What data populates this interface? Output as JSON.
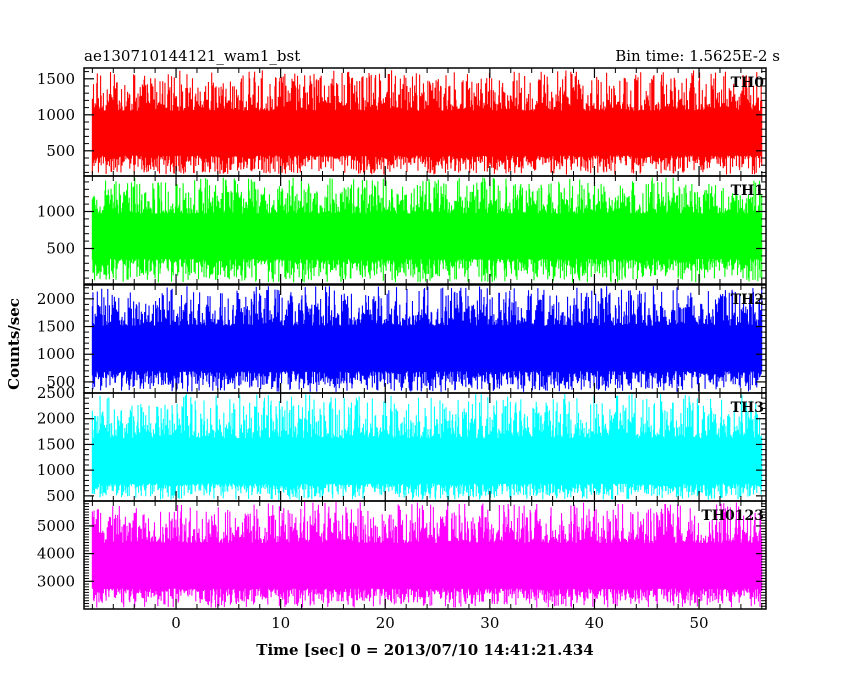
{
  "header": {
    "left": "ae130710144121_wam1_bst",
    "right": "Bin time: 1.5625E-2 s"
  },
  "chart_data": {
    "type": "line",
    "title": "ae130710144121_wam1_bst",
    "xlabel": "Time [sec] 0 = 2013/07/10 14:41:21.434",
    "ylabel": "Counts/sec",
    "xlim": [
      -8.8,
      56.4
    ],
    "x_data_range": [
      -8.0,
      56.0
    ],
    "xticks": [
      0,
      10,
      20,
      30,
      40,
      50
    ],
    "grid": false,
    "panels": [
      {
        "name": "TH0",
        "color": "#ff0000",
        "ylim": [
          150,
          1650
        ],
        "yticks": [
          500,
          1000,
          1500
        ],
        "level": 650,
        "noise_low": 170,
        "noise_high": 1620
      },
      {
        "name": "TH1",
        "color": "#00ff00",
        "ylim": [
          20,
          1480
        ],
        "yticks": [
          500,
          1000
        ],
        "level": 620,
        "noise_low": 40,
        "noise_high": 1460
      },
      {
        "name": "TH2",
        "color": "#0000ff",
        "ylim": [
          300,
          2250
        ],
        "yticks": [
          500,
          1000,
          1500,
          2000
        ],
        "level": 1000,
        "noise_low": 320,
        "noise_high": 2230
      },
      {
        "name": "TH3",
        "color": "#00ffff",
        "ylim": [
          400,
          2500
        ],
        "yticks": [
          500,
          1000,
          1500,
          2000,
          2500
        ],
        "level": 1000,
        "noise_low": 420,
        "noise_high": 2480
      },
      {
        "name": "TH0123",
        "color": "#ff00ff",
        "ylim": [
          2000,
          5900
        ],
        "yticks": [
          3000,
          4000,
          5000
        ],
        "level": 3300,
        "noise_low": 2050,
        "noise_high": 5880
      }
    ]
  }
}
